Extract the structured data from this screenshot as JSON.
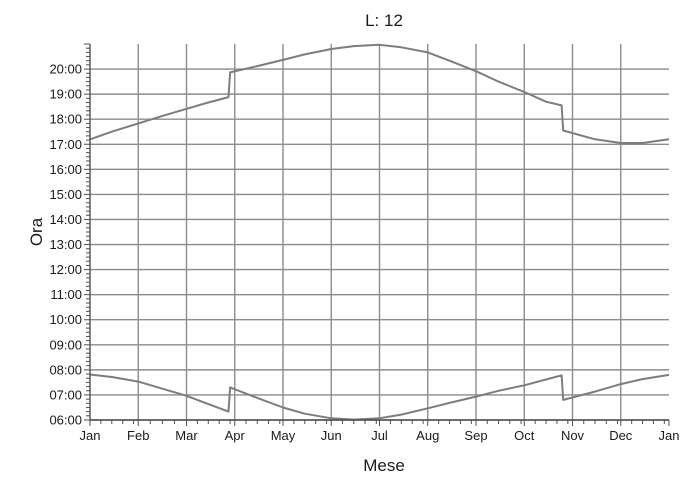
{
  "chart_data": {
    "type": "line",
    "title": "L: 12",
    "xlabel": "Mese",
    "ylabel": "Ora",
    "x_tick_labels": [
      "Jan",
      "Feb",
      "Mar",
      "Apr",
      "May",
      "Jun",
      "Jul",
      "Aug",
      "Sep",
      "Oct",
      "Nov",
      "Dec",
      "Jan"
    ],
    "y_tick_labels": [
      "06:00",
      "07:00",
      "08:00",
      "09:00",
      "10:00",
      "11:00",
      "12:00",
      "13:00",
      "14:00",
      "15:00",
      "16:00",
      "17:00",
      "18:00",
      "19:00",
      "20:00"
    ],
    "xlim": [
      "Jan 1",
      "Jan 1"
    ],
    "ylim": [
      "06:00",
      "21:00"
    ],
    "grid": true,
    "series": [
      {
        "role": "sunset",
        "x": [
          "Jan 1",
          "Jan 15",
          "Feb 1",
          "Feb 15",
          "Mar 1",
          "Mar 15",
          "Mar 28",
          "Mar 29",
          "Apr 15",
          "May 1",
          "May 15",
          "Jun 1",
          "Jun 15",
          "Jul 1",
          "Jul 15",
          "Aug 1",
          "Aug 15",
          "Sep 1",
          "Sep 15",
          "Oct 1",
          "Oct 15",
          "Oct 25",
          "Oct 26",
          "Nov 15",
          "Dec 1",
          "Dec 15",
          "Jan 1"
        ],
        "y": [
          "17:12",
          "17:30",
          "17:50",
          "18:08",
          "18:25",
          "18:40",
          "18:53",
          "19:52",
          "20:07",
          "20:22",
          "20:35",
          "20:48",
          "20:55",
          "20:58",
          "20:52",
          "20:40",
          "20:20",
          "19:55",
          "19:30",
          "19:05",
          "18:42",
          "18:33",
          "17:33",
          "17:12",
          "17:03",
          "17:03",
          "17:12"
        ]
      },
      {
        "role": "sunrise",
        "x": [
          "Jan 1",
          "Jan 15",
          "Feb 1",
          "Feb 15",
          "Mar 1",
          "Mar 15",
          "Mar 28",
          "Mar 29",
          "Apr 15",
          "May 1",
          "May 15",
          "Jun 1",
          "Jun 15",
          "Jul 1",
          "Jul 15",
          "Aug 1",
          "Aug 15",
          "Sep 1",
          "Sep 15",
          "Oct 1",
          "Oct 15",
          "Oct 25",
          "Oct 26",
          "Nov 15",
          "Dec 1",
          "Dec 15",
          "Jan 1"
        ],
        "y": [
          "07:49",
          "07:43",
          "07:32",
          "07:15",
          "06:58",
          "06:38",
          "06:20",
          "07:18",
          "06:53",
          "06:30",
          "06:15",
          "06:04",
          "06:01",
          "06:04",
          "06:13",
          "06:28",
          "06:41",
          "06:56",
          "07:10",
          "07:23",
          "07:37",
          "07:47",
          "06:48",
          "07:08",
          "07:26",
          "07:38",
          "07:48"
        ]
      }
    ]
  },
  "colors": {
    "line": "#7d7d7d",
    "grid": "#8c8c8c",
    "axis": "#505050",
    "text": "#1a1a1a",
    "background": "#ffffff"
  }
}
